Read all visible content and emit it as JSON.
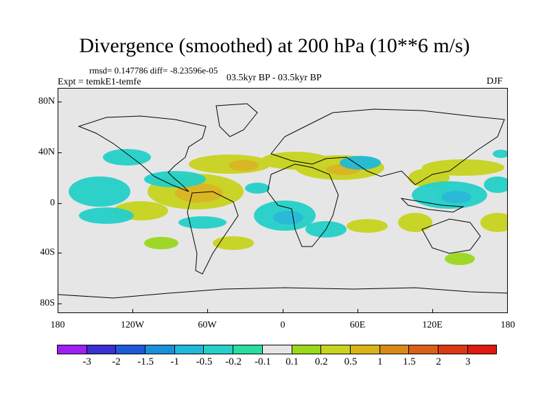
{
  "header": {
    "title": "Divergence (smoothed) at 200 hPa (10**6 m/s)",
    "stats": "rmsd= 0.147786 diff= -8.23596e-05",
    "experiment": "Expt = temkE1-temfe",
    "period": "03.5kyr BP - 03.5kyr BP",
    "season": "DJF"
  },
  "axes": {
    "lat_labels": [
      "80N",
      "40N",
      "0",
      "40S",
      "80S"
    ],
    "lat_values": [
      80,
      40,
      0,
      -40,
      -80
    ],
    "lon_labels": [
      "180",
      "120W",
      "60W",
      "0",
      "60E",
      "120E",
      "180"
    ],
    "lon_values": [
      -180,
      -120,
      -60,
      0,
      60,
      120,
      180
    ]
  },
  "colorbar": {
    "labels": [
      "-3",
      "-2",
      "-1.5",
      "-1",
      "-0.5",
      "-0.2",
      "-0.1",
      "0.1",
      "0.2",
      "0.5",
      "1",
      "1.5",
      "2",
      "3"
    ],
    "colors": [
      "#a020f0",
      "#3a2fd0",
      "#1e5ad8",
      "#1a90d8",
      "#20b8d8",
      "#25d0c8",
      "#2adca0",
      "#e6e6e6",
      "#9ad81e",
      "#c8d41e",
      "#d8b41a",
      "#d88a18",
      "#d86018",
      "#d83a14",
      "#e01a10"
    ]
  },
  "map": {
    "background": "#e6e6e6",
    "coastline_color": "#000000"
  }
}
